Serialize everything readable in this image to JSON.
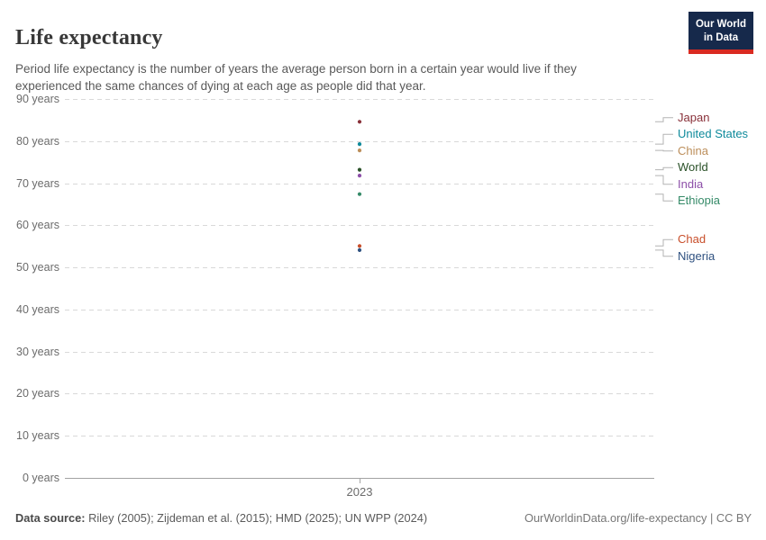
{
  "header": {
    "title": "Life expectancy",
    "subtitle": "Period life expectancy is the number of years the average person born in a certain year would live if they experienced the same chances of dying at each age as people did that year.",
    "logo": {
      "line1": "Our World",
      "line2": "in Data"
    }
  },
  "chart_data": {
    "type": "scatter",
    "title": "Life expectancy",
    "xlabel": "",
    "ylabel": "",
    "x": [
      2023
    ],
    "x_tick_label": "2023",
    "y_range": [
      0,
      90
    ],
    "grid": "horizontal-dashed",
    "legend_position": "right",
    "y_ticks": [
      {
        "value": 0,
        "label": "0 years"
      },
      {
        "value": 10,
        "label": "10 years"
      },
      {
        "value": 20,
        "label": "20 years"
      },
      {
        "value": 30,
        "label": "30 years"
      },
      {
        "value": 40,
        "label": "40 years"
      },
      {
        "value": 50,
        "label": "50 years"
      },
      {
        "value": 60,
        "label": "60 years"
      },
      {
        "value": 70,
        "label": "70 years"
      },
      {
        "value": 80,
        "label": "80 years"
      },
      {
        "value": 90,
        "label": "90 years"
      }
    ],
    "series": [
      {
        "name": "Japan",
        "year": 2023,
        "value": 84.6,
        "color": "#883039"
      },
      {
        "name": "United States",
        "year": 2023,
        "value": 79.3,
        "color": "#0E8A9B"
      },
      {
        "name": "China",
        "year": 2023,
        "value": 77.8,
        "color": "#BC8E5A"
      },
      {
        "name": "World",
        "year": 2023,
        "value": 73.2,
        "color": "#2A5128"
      },
      {
        "name": "India",
        "year": 2023,
        "value": 71.8,
        "color": "#8C4EA8"
      },
      {
        "name": "Ethiopia",
        "year": 2023,
        "value": 67.4,
        "color": "#358A68"
      },
      {
        "name": "Chad",
        "year": 2023,
        "value": 55.1,
        "color": "#C84E2A"
      },
      {
        "name": "Nigeria",
        "year": 2023,
        "value": 54.1,
        "color": "#2F5180"
      }
    ]
  },
  "theme": {
    "grid_color": "#D9D9D9",
    "axis_color": "#A3A3A3",
    "connector_color": "#B3B3B3",
    "tick_text_color": "#6B6B6B",
    "logo_bg": "#16294B",
    "logo_accent": "#D92A21"
  },
  "footer": {
    "source_label": "Data source:",
    "source_text": " Riley (2005); Zijdeman et al. (2015); HMD (2025); UN WPP (2024)",
    "link_text": "OurWorldinData.org/life-expectancy | CC BY"
  }
}
